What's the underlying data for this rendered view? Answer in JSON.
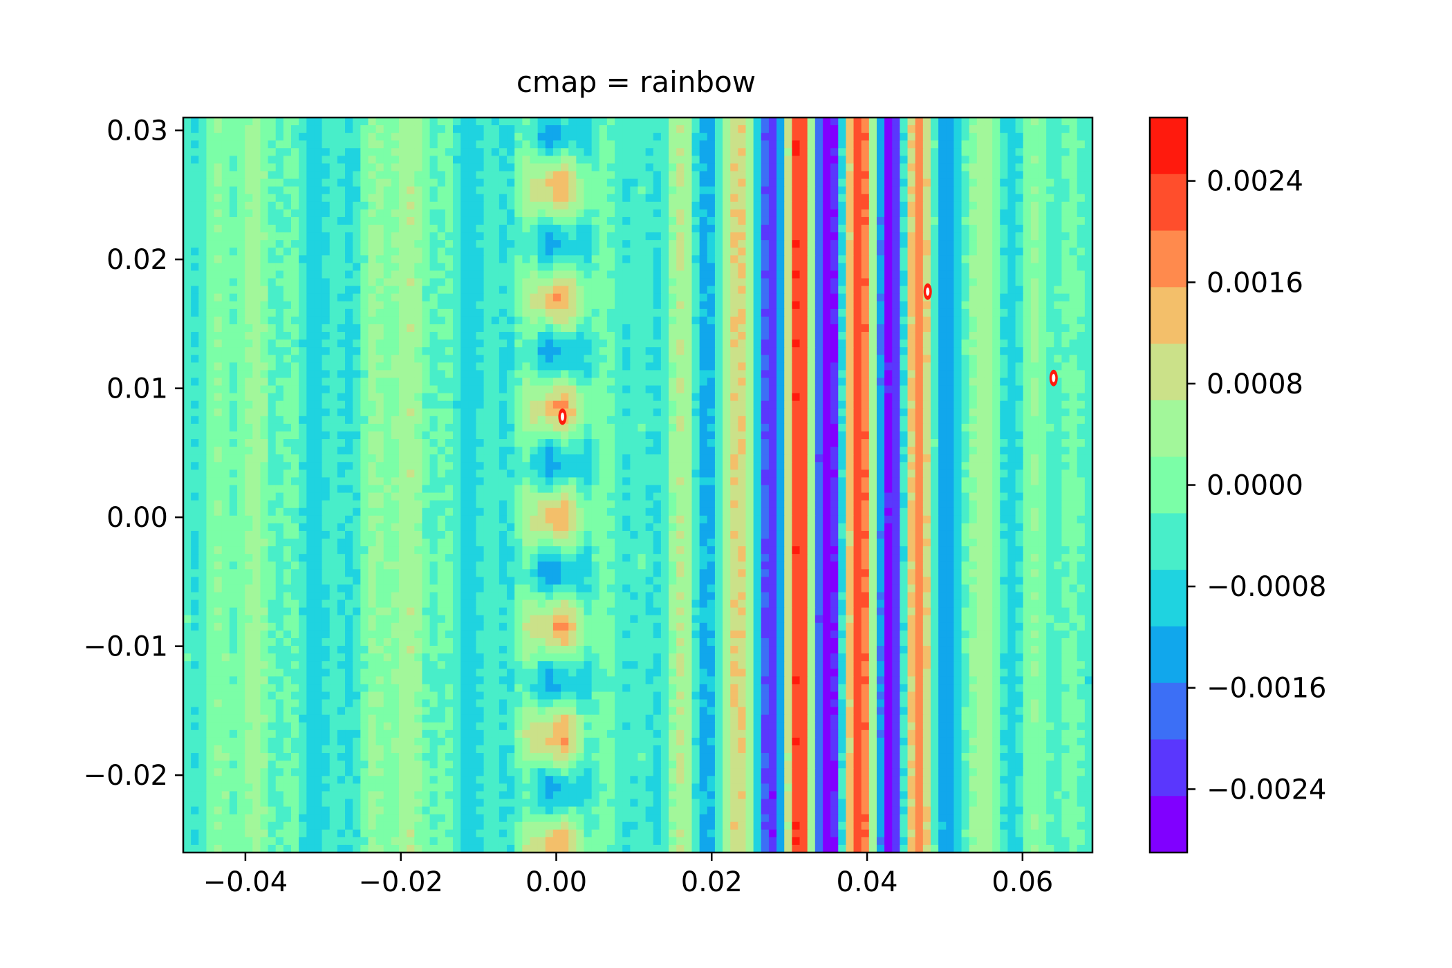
{
  "chart_data": {
    "type": "heatmap",
    "subtype": "filled-contour",
    "title": "cmap = rainbow",
    "colormap": "rainbow",
    "xlabel": "",
    "ylabel": "",
    "xlim": [
      -0.048,
      0.069
    ],
    "ylim": [
      -0.026,
      0.031
    ],
    "x_ticks": [
      -0.04,
      -0.02,
      0.0,
      0.02,
      0.04,
      0.06
    ],
    "x_tick_labels": [
      "−0.04",
      "−0.02",
      "0.00",
      "0.02",
      "0.04",
      "0.06"
    ],
    "y_ticks": [
      -0.02,
      -0.01,
      0.0,
      0.01,
      0.02,
      0.03
    ],
    "y_tick_labels": [
      "−0.02",
      "−0.01",
      "0.00",
      "0.01",
      "0.02",
      "0.03"
    ],
    "colorbar": {
      "range": [
        -0.0029,
        0.0029
      ],
      "ticks": [
        0.0024,
        0.0016,
        0.0008,
        0.0,
        -0.0008,
        -0.0016,
        -0.0024
      ],
      "tick_labels": [
        "0.0024",
        "0.0016",
        "0.0008",
        "0.0000",
        "−0.0008",
        "−0.0016",
        "−0.0024"
      ],
      "levels": [
        {
          "from": -0.0029,
          "to": -0.0024,
          "color": "#8000ff"
        },
        {
          "from": -0.0024,
          "to": -0.0019,
          "color": "#5a37fd"
        },
        {
          "from": -0.0019,
          "to": -0.0014,
          "color": "#3c6ff6"
        },
        {
          "from": -0.0014,
          "to": -0.0009,
          "color": "#11a7ec"
        },
        {
          "from": -0.0009,
          "to": -0.0004,
          "color": "#1fd3e0"
        },
        {
          "from": -0.0004,
          "to": 0.0,
          "color": "#48eec9"
        },
        {
          "from": 0.0,
          "to": 0.0004,
          "color": "#7bfea7"
        },
        {
          "from": 0.0004,
          "to": 0.0009,
          "color": "#a2f79a"
        },
        {
          "from": 0.0009,
          "to": 0.0014,
          "color": "#cbe189"
        },
        {
          "from": 0.0014,
          "to": 0.0019,
          "color": "#f3bf6a"
        },
        {
          "from": 0.0019,
          "to": 0.0024,
          "color": "#ff8a4d"
        },
        {
          "from": 0.0024,
          "to": 0.0029,
          "color": "#ff4e2c"
        },
        {
          "from": 0.0029,
          "to": 0.0034,
          "color": "#ff1a0d"
        }
      ]
    },
    "field": {
      "description": "interference fringe pattern",
      "fringe_spacing_x": 0.0078,
      "fringe_center_x": 0.036,
      "fringe_width_x": 0.016,
      "peak_amplitude": 0.003,
      "curvature": 0.03,
      "hot_spots": [
        {
          "x": 0.0008,
          "y": 0.0078
        },
        {
          "x": 0.064,
          "y": 0.0108
        },
        {
          "x": 0.0478,
          "y": 0.0175
        }
      ]
    }
  }
}
